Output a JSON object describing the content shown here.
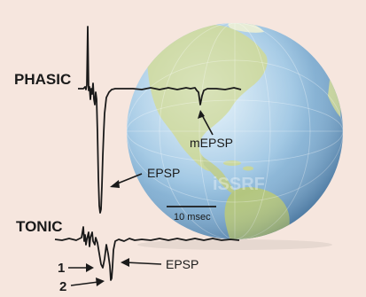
{
  "labels": {
    "phasic": "PHASIC",
    "tonic": "TONIC",
    "mepsp": "mEPSP",
    "epsp_phasic": "EPSP",
    "epsp_tonic": "EPSP",
    "scale": "10 msec",
    "marker_1": "1",
    "marker_2": "2",
    "watermark": "iSSRF"
  },
  "colors": {
    "background": "#f6e6de",
    "trace": "#1a1a1a",
    "ocean": "#8fb8d9",
    "land": "#bfcf8f"
  },
  "icons": {
    "globe": "globe-icon"
  }
}
